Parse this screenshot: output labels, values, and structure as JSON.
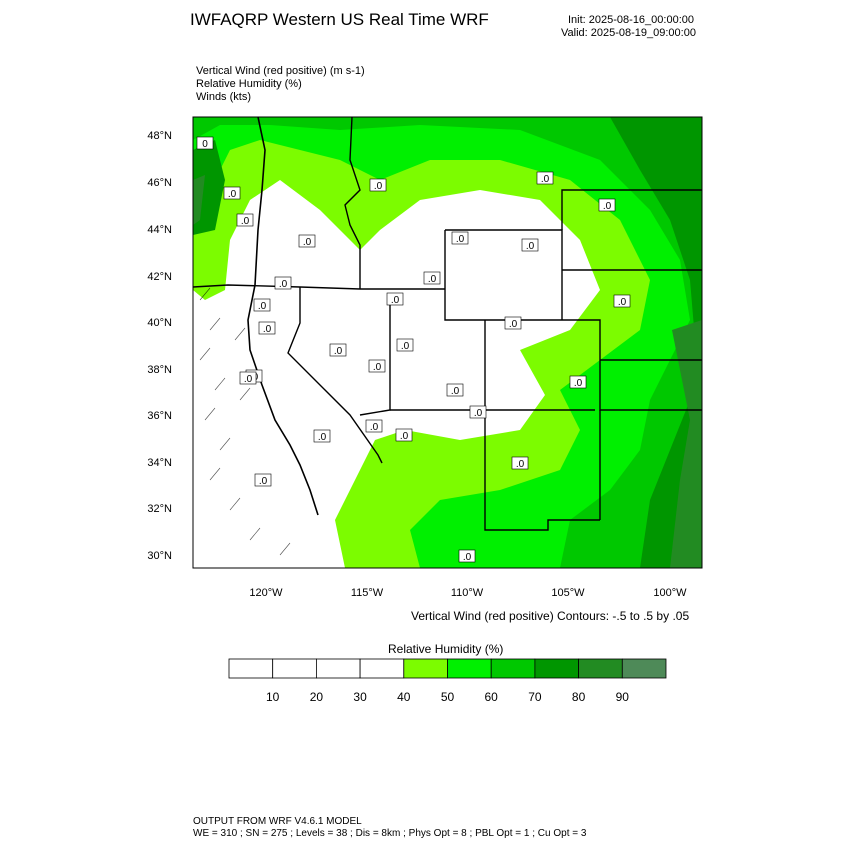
{
  "header": {
    "title": "IWFAQRP Western US Real Time WRF",
    "init": "Init: 2025-08-16_00:00:00",
    "valid": "Valid: 2025-08-19_09:00:00"
  },
  "fields": [
    "Vertical Wind (red positive)   (m s-1)",
    "Relative Humidity   (%)",
    "Winds   (kts)"
  ],
  "axes": {
    "lat_labels": [
      "48°N",
      "46°N",
      "44°N",
      "42°N",
      "40°N",
      "38°N",
      "36°N",
      "34°N",
      "32°N",
      "30°N"
    ],
    "lon_labels": [
      "120°W",
      "115°W",
      "110°W",
      "105°W",
      "100°W"
    ]
  },
  "contour_note": "Vertical Wind (red positive) Contours: -.5 to .5 by .05",
  "colorbar": {
    "title": "Relative Humidity   (%)",
    "labels": [
      "10",
      "20",
      "30",
      "40",
      "50",
      "60",
      "70",
      "80",
      "90"
    ],
    "colors": [
      "#ffffff",
      "#ffffff",
      "#ffffff",
      "#ffffff",
      "#7cfc00",
      "#00f000",
      "#00c800",
      "#009600",
      "#228b22",
      "#4e8a58"
    ]
  },
  "contour_labels": [
    "0",
    ".0",
    ".0",
    ".0",
    ".0",
    ".0",
    ".0",
    ".0",
    ".0",
    ".0",
    ".0",
    ".0",
    ".0",
    ".0",
    ".0",
    ".0",
    ".0",
    ".0",
    ".0",
    ".0",
    ".0",
    ".0",
    ".0",
    ".0",
    ".0",
    ".0",
    ".0",
    ".0",
    ".0",
    ".0"
  ],
  "footer": {
    "line1": "OUTPUT FROM WRF V4.6.1 MODEL",
    "line2": "WE = 310 ; SN = 275 ; Levels = 38 ; Dis = 8km ; Phys Opt = 8 ; PBL Opt = 1 ; Cu Opt = 3"
  }
}
